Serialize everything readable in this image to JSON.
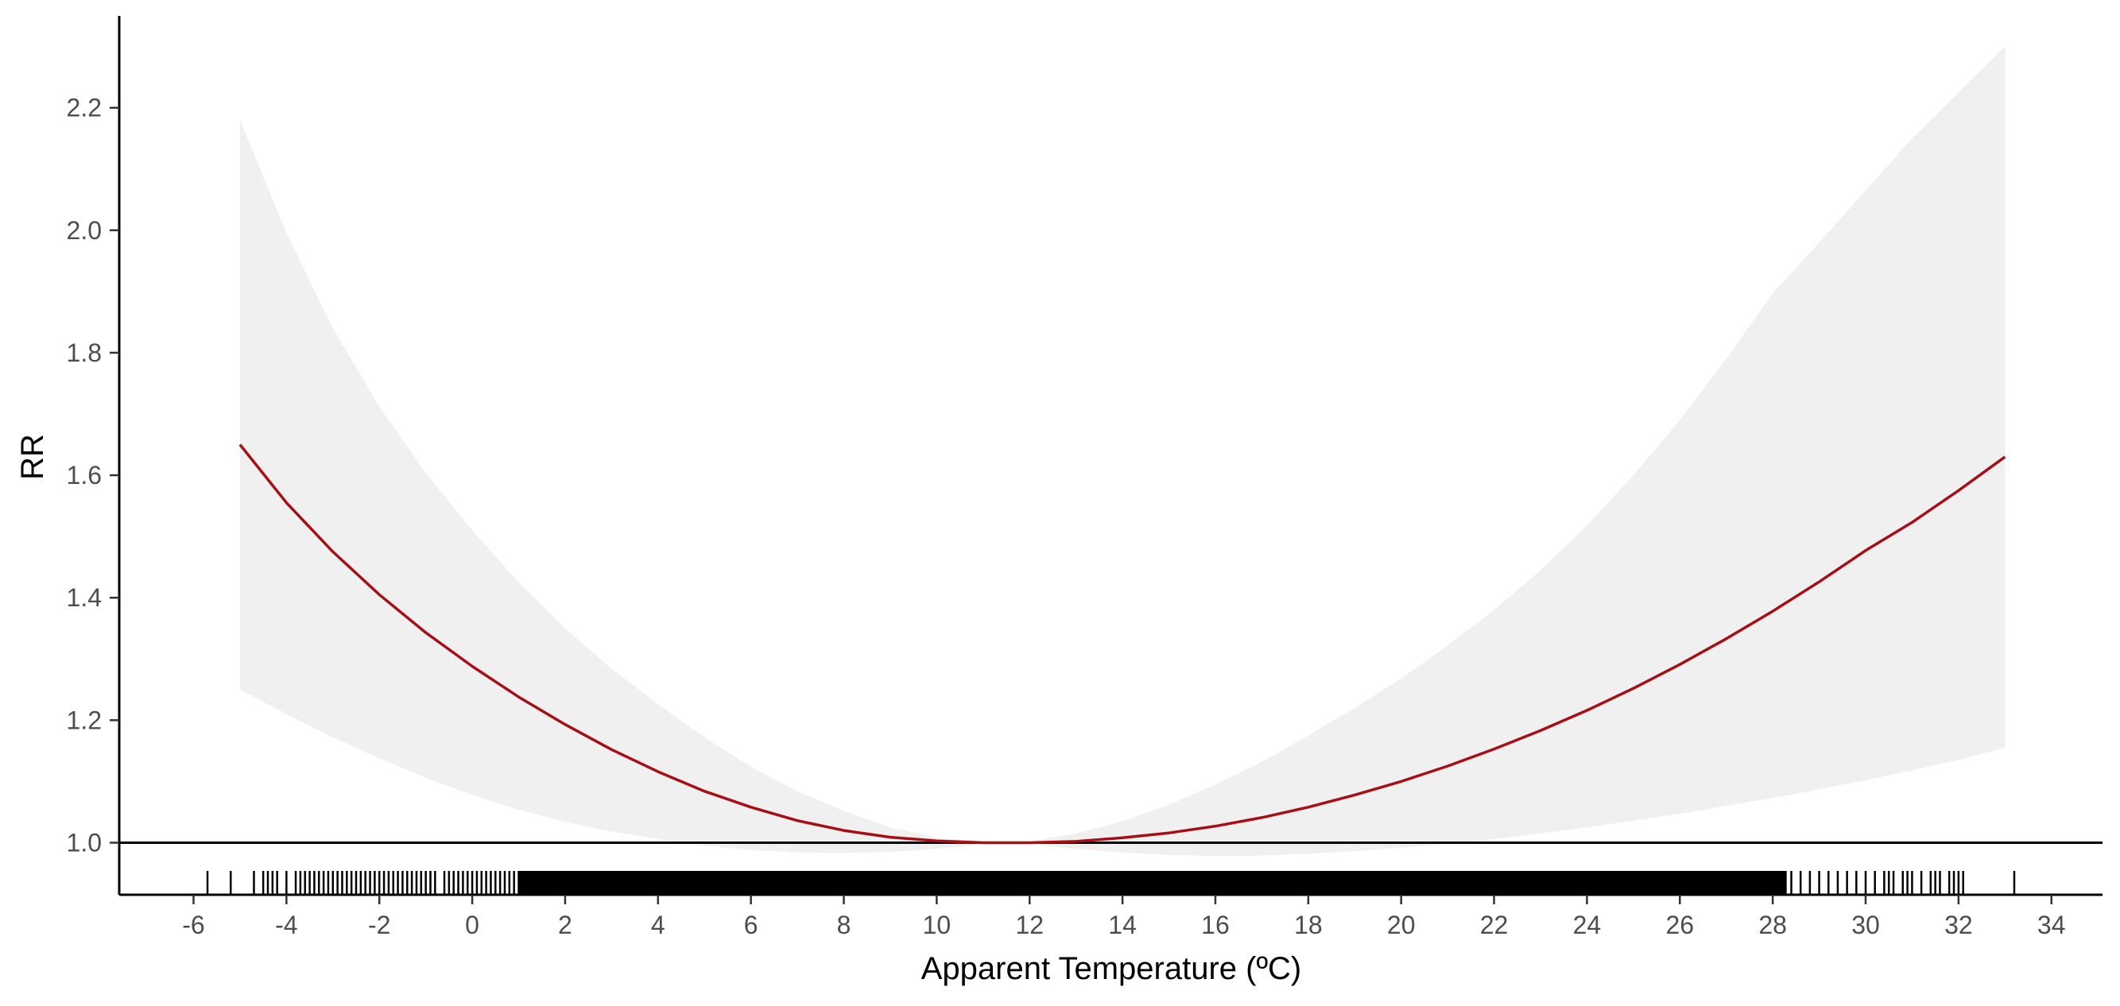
{
  "chart_data": {
    "type": "line",
    "xlabel": "Apparent Temperature (ºC)",
    "ylabel": "RR",
    "xlim": [
      -7.6,
      35.1
    ],
    "ylim": [
      0.915,
      2.35
    ],
    "x_ticks": [
      -6,
      -4,
      -2,
      0,
      2,
      4,
      6,
      8,
      10,
      12,
      14,
      16,
      18,
      20,
      22,
      24,
      26,
      28,
      30,
      32,
      34
    ],
    "y_ticks": [
      1.0,
      1.2,
      1.4,
      1.6,
      1.8,
      2.0,
      2.2
    ],
    "reference_line": 1.0,
    "grid": false,
    "legend": "none",
    "colors": {
      "line": "#A50F15",
      "band": "#F0F0F0",
      "axis": "#000000"
    },
    "series": [
      {
        "x": [
          -5,
          -4,
          -3,
          -2,
          -1,
          0,
          1,
          2,
          3,
          4,
          5,
          6,
          7,
          8,
          9,
          10,
          11,
          12,
          13,
          14,
          15,
          16,
          17,
          18,
          19,
          20,
          21,
          22,
          23,
          24,
          25,
          26,
          27,
          28,
          29,
          30,
          31,
          32,
          33
        ],
        "y": [
          1.65,
          1.555,
          1.475,
          1.405,
          1.343,
          1.288,
          1.238,
          1.193,
          1.152,
          1.116,
          1.084,
          1.058,
          1.036,
          1.02,
          1.009,
          1.003,
          1.0,
          1.0,
          1.002,
          1.008,
          1.016,
          1.027,
          1.041,
          1.058,
          1.078,
          1.1,
          1.125,
          1.153,
          1.183,
          1.216,
          1.252,
          1.291,
          1.333,
          1.378,
          1.426,
          1.477,
          1.523,
          1.575,
          1.63
        ],
        "lower": [
          1.25,
          1.21,
          1.172,
          1.138,
          1.106,
          1.078,
          1.054,
          1.034,
          1.018,
          1.006,
          0.995,
          0.988,
          0.984,
          0.983,
          0.985,
          0.99,
          0.997,
          0.997,
          0.99,
          0.984,
          0.98,
          0.978,
          0.979,
          0.982,
          0.986,
          0.992,
          0.998,
          1.006,
          1.015,
          1.025,
          1.036,
          1.047,
          1.06,
          1.073,
          1.087,
          1.102,
          1.118,
          1.135,
          1.155
        ],
        "upper": [
          2.18,
          1.995,
          1.84,
          1.712,
          1.604,
          1.51,
          1.425,
          1.35,
          1.284,
          1.226,
          1.172,
          1.124,
          1.084,
          1.052,
          1.025,
          1.008,
          1.002,
          1.002,
          1.015,
          1.035,
          1.062,
          1.095,
          1.132,
          1.175,
          1.22,
          1.268,
          1.322,
          1.38,
          1.445,
          1.518,
          1.6,
          1.69,
          1.79,
          1.897,
          1.98,
          2.065,
          2.15,
          2.225,
          2.3
        ]
      }
    ],
    "rug": [
      -5.7,
      -5.2,
      -4.7,
      -4.5,
      -4.4,
      -4.3,
      -4.2,
      -4.0,
      -3.8,
      -3.7,
      -3.6,
      -3.5,
      -3.4,
      -3.3,
      -3.2,
      -3.1,
      -3.0,
      -2.9,
      -2.8,
      -2.7,
      -2.6,
      -2.5,
      -2.4,
      -2.3,
      -2.2,
      -2.1,
      -2.0,
      -1.9,
      -1.8,
      -1.7,
      -1.6,
      -1.5,
      -1.4,
      -1.3,
      -1.2,
      -1.1,
      -1.0,
      -0.9,
      -0.8,
      -0.6,
      -0.5,
      -0.4,
      -0.3,
      -0.2,
      -0.1,
      0.0,
      0.1,
      0.2,
      0.3,
      0.4,
      0.5,
      0.6,
      0.7,
      0.8,
      0.9,
      1.0,
      28.4,
      28.6,
      28.8,
      29.0,
      29.2,
      29.4,
      29.6,
      29.8,
      30.0,
      30.2,
      30.4,
      30.5,
      30.6,
      30.8,
      30.9,
      31.0,
      31.2,
      31.4,
      31.5,
      31.6,
      31.8,
      31.9,
      32.0,
      32.1,
      33.2
    ],
    "rug_dense_range": [
      1.0,
      28.3
    ]
  }
}
